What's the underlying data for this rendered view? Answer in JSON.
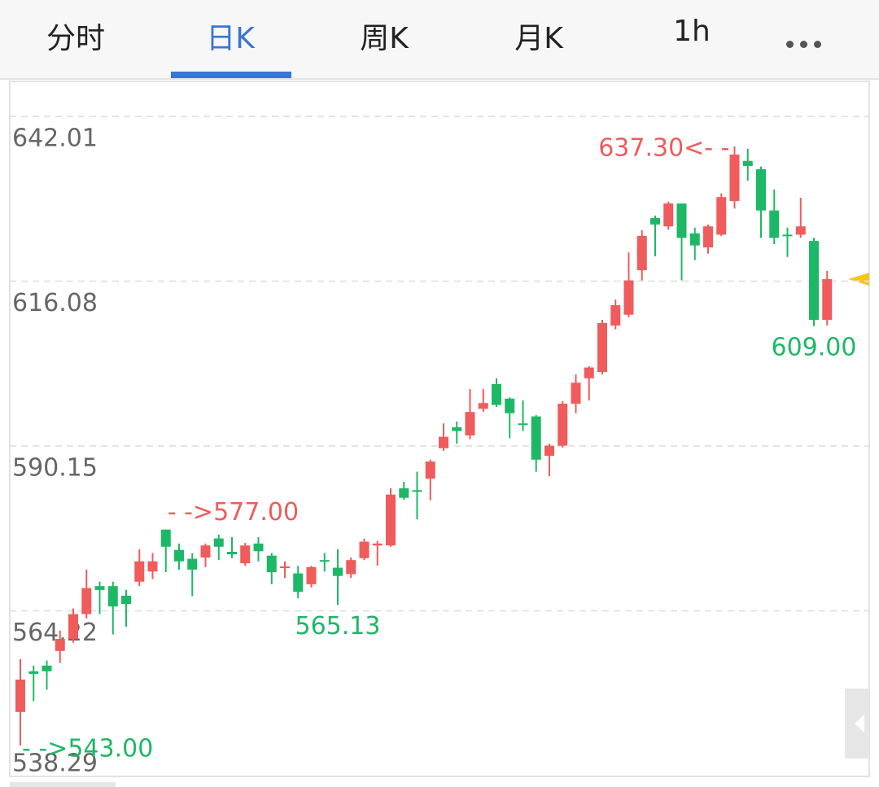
{
  "tabs": [
    "分时",
    "日K",
    "周K",
    "月K",
    "1h"
  ],
  "chart_data": {
    "type": "candlestick",
    "up_color": "#f05b5b",
    "down_color": "#1db866",
    "grid": true,
    "ylim": [
      538.29,
      647.64
    ],
    "yticks": [
      642.01,
      616.08,
      590.15,
      564.22,
      538.29
    ],
    "open": [
      548.3,
      554.7,
      555.6,
      557.9,
      559.8,
      563.7,
      568.1,
      568.1,
      566.6,
      568.8,
      570.4,
      577.0,
      573.8,
      572.4,
      572.6,
      575.6,
      573.5,
      571.7,
      574.8,
      572.9,
      571.0,
      570.1,
      568.4,
      572.2,
      571.0,
      570.0,
      572.5,
      574.5,
      574.5,
      583.5,
      583.2,
      585.0,
      589.8,
      593.1,
      591.8,
      596.0,
      599.9,
      597.6,
      593.7,
      594.8,
      588.6,
      590.2,
      596.8,
      600.8,
      601.8,
      609.1,
      610.8,
      617.8,
      626.0,
      624.7,
      628.3,
      623.6,
      621.4,
      623.4,
      628.7,
      635.0,
      633.7,
      627.2,
      623.4,
      623.4,
      622.4,
      610.0
    ],
    "high": [
      556.6,
      555.6,
      556.4,
      561.1,
      564.6,
      570.7,
      568.8,
      568.8,
      567.5,
      573.9,
      573.3,
      577.0,
      574.8,
      573.3,
      574.8,
      576.2,
      575.8,
      574.9,
      575.8,
      573.3,
      572.0,
      571.3,
      571.3,
      573.3,
      573.9,
      572.6,
      575.6,
      575.2,
      583.5,
      584.5,
      586.1,
      588.0,
      593.7,
      594.0,
      599.1,
      599.1,
      600.8,
      597.8,
      597.3,
      595.0,
      590.5,
      597.2,
      601.4,
      602.7,
      610.0,
      613.2,
      620.6,
      624.1,
      626.4,
      628.6,
      628.3,
      624.5,
      625.0,
      629.9,
      637.3,
      636.9,
      634.1,
      630.5,
      624.5,
      629.2,
      622.9,
      617.7
    ],
    "low": [
      543.0,
      550.0,
      551.8,
      556.0,
      559.2,
      563.0,
      563.7,
      560.5,
      561.7,
      568.1,
      569.2,
      570.3,
      570.7,
      566.5,
      571.1,
      572.2,
      572.5,
      571.3,
      572.0,
      568.4,
      569.4,
      566.2,
      567.9,
      570.4,
      565.13,
      569.4,
      572.2,
      571.3,
      574.3,
      581.7,
      578.6,
      581.6,
      589.4,
      590.5,
      591.2,
      595.5,
      596.3,
      591.4,
      592.5,
      586.1,
      585.4,
      589.9,
      595.3,
      597.3,
      601.4,
      608.5,
      610.4,
      616.2,
      620.0,
      624.2,
      616.2,
      619.4,
      620.4,
      623.2,
      627.5,
      631.9,
      622.9,
      621.9,
      619.9,
      622.9,
      609.0,
      609.1
    ],
    "close": [
      553.4,
      554.3,
      554.7,
      559.8,
      563.7,
      567.8,
      567.5,
      564.9,
      565.3,
      572.0,
      572.0,
      574.3,
      572.0,
      570.7,
      574.5,
      574.3,
      573.1,
      574.5,
      573.6,
      570.3,
      571.2,
      567.2,
      571.1,
      572.0,
      569.7,
      572.2,
      575.1,
      574.8,
      582.5,
      582.0,
      583.0,
      587.7,
      591.6,
      592.5,
      595.5,
      596.9,
      596.6,
      595.3,
      593.5,
      588.0,
      590.2,
      596.8,
      600.1,
      602.5,
      609.5,
      612.3,
      616.2,
      623.2,
      625.0,
      628.3,
      622.9,
      621.7,
      624.7,
      629.3,
      636.0,
      634.2,
      627.2,
      622.9,
      623.2,
      624.7,
      610.0,
      616.4
    ],
    "annotations": [
      {
        "value": 637.3,
        "label": "637.30<- -"
      },
      {
        "value": 577.0,
        "label": "- ->577.00"
      },
      {
        "value": 565.13,
        "label": "565.13"
      },
      {
        "value": 609.0,
        "label": "609.00"
      },
      {
        "value": 543.0,
        "label": "- ->543.00"
      }
    ]
  }
}
